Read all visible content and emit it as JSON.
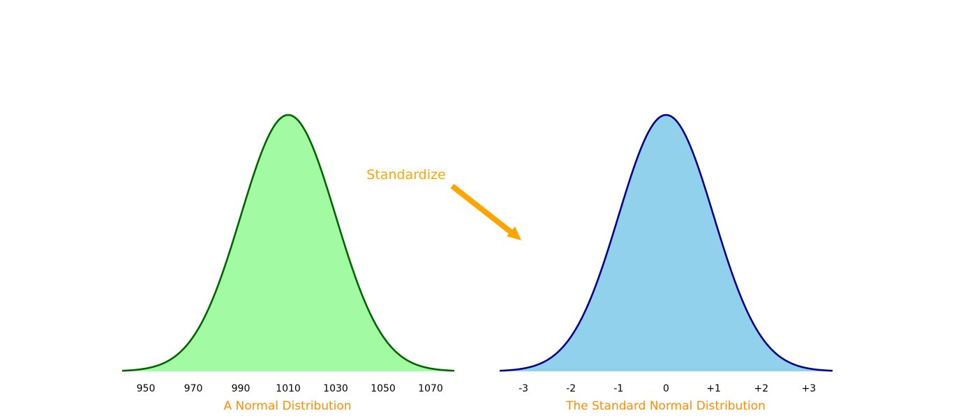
{
  "annotation": {
    "text": "Standardize",
    "color": "#FFA500"
  },
  "chart_data": [
    {
      "type": "area",
      "xlabel": "A Normal Distribution",
      "xlabel_color": "#FF8C00",
      "mean": 1010,
      "sd": 20,
      "xlim": [
        940,
        1080
      ],
      "ticks": [
        950,
        970,
        990,
        1010,
        1030,
        1050,
        1070
      ],
      "tick_labels": [
        "950",
        "970",
        "990",
        "1010",
        "1030",
        "1050",
        "1070"
      ],
      "fill_color": "#A2FAA3",
      "line_color": "#006400",
      "grid": false,
      "legend": "none"
    },
    {
      "type": "area",
      "xlabel": "The Standard Normal Distribution",
      "xlabel_color": "#FF8C00",
      "mean": 0,
      "sd": 1,
      "xlim": [
        -3.5,
        3.5
      ],
      "ticks": [
        -3,
        -2,
        -1,
        0,
        1,
        2,
        3
      ],
      "tick_labels": [
        "-3",
        "-2",
        "-1",
        "0",
        "+1",
        "+2",
        "+3"
      ],
      "fill_color": "#92D1EC",
      "line_color": "#00008B",
      "grid": false,
      "legend": "none"
    }
  ]
}
